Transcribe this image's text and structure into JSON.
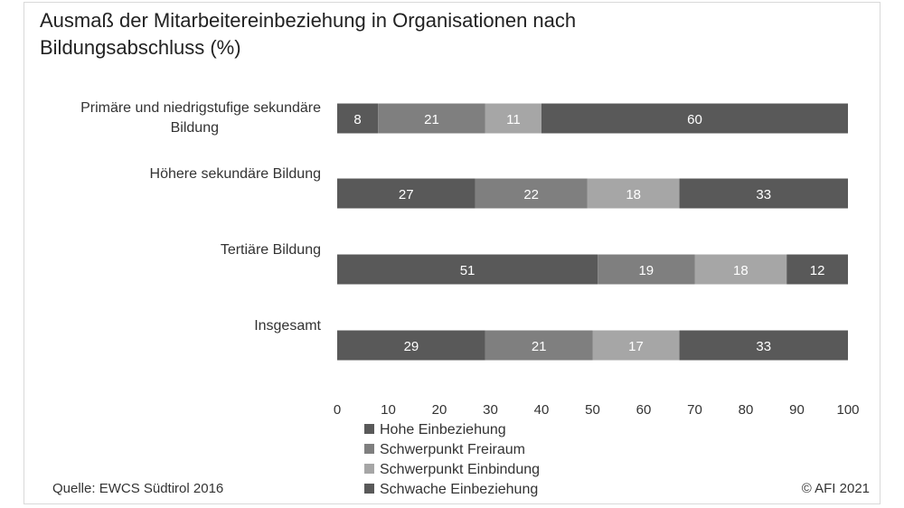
{
  "chart_data": {
    "type": "bar",
    "orientation": "horizontal",
    "stacked": true,
    "title": "Ausmaß der Mitarbeitereinbeziehung in Organisationen nach Bildungsabschluss (%)",
    "categories": [
      "Primäre und niedrigstufige sekundäre Bildung",
      "Höhere sekundäre Bildung",
      "Tertiäre Bildung",
      "Insgesamt"
    ],
    "series": [
      {
        "name": "Hohe Einbeziehung",
        "color": "#595959",
        "values": [
          8,
          27,
          51,
          29
        ]
      },
      {
        "name": "Schwerpunkt Freiraum",
        "color": "#7f7f7f",
        "values": [
          21,
          22,
          19,
          21
        ]
      },
      {
        "name": "Schwerpunkt Einbindung",
        "color": "#a6a6a6",
        "values": [
          11,
          18,
          18,
          17
        ]
      },
      {
        "name": "Schwache Einbeziehung",
        "color": "#595959",
        "values": [
          60,
          33,
          12,
          33
        ]
      }
    ],
    "xlim": [
      0,
      100
    ],
    "xticks": [
      0,
      10,
      20,
      30,
      40,
      50,
      60,
      70,
      80,
      90,
      100
    ],
    "grid": false,
    "legend": "bottom",
    "data_labels": true
  },
  "footer": {
    "source": "Quelle: EWCS Südtirol 2016",
    "copyright": "© AFI 2021"
  }
}
